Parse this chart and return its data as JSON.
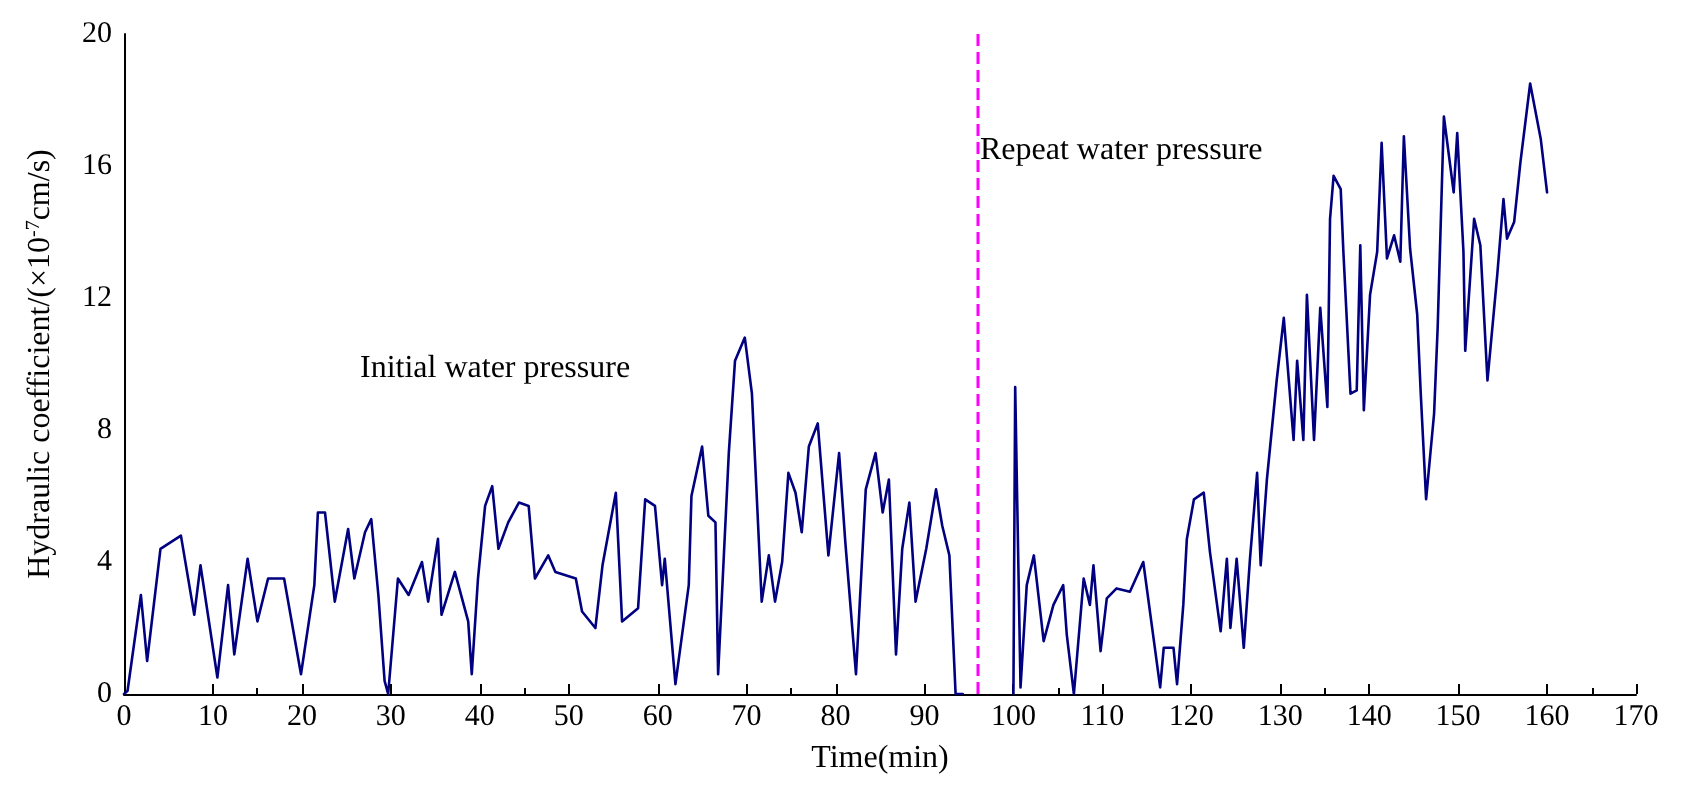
{
  "chart_data": {
    "type": "line",
    "xlabel": "Time(min)",
    "ylabel": "Hydraulic coefficient/(×10$^{-7}$cm/s)",
    "annotations": [
      "Initial water pressure",
      "Repeat water pressure"
    ],
    "xlim": [
      0,
      170
    ],
    "xticks": [
      0,
      10,
      20,
      30,
      40,
      50,
      60,
      70,
      80,
      90,
      100,
      110,
      120,
      130,
      140,
      150,
      160,
      170
    ],
    "ylim": [
      0,
      20
    ],
    "yticks": [
      0,
      4,
      8,
      12,
      16,
      20
    ],
    "grid": false,
    "marker": "none",
    "line_style": "solid",
    "ref_lines": [
      {
        "axis": "x",
        "value": 96,
        "label": null,
        "color": "#ff00ff",
        "line_style": "dashed"
      }
    ],
    "series": [
      {
        "color": "#000080",
        "x": [
          0,
          0.4,
          1.9,
          2.6,
          4.1,
          6.4,
          7.9,
          8.6,
          10.5,
          11.7,
          12.4,
          13.9,
          15.0,
          16.2,
          18.0,
          19.9,
          21.4,
          21.8,
          22.6,
          23.7,
          25.2,
          25.9,
          27.1,
          27.8,
          28.6,
          29.3,
          29.7,
          30.8,
          32.0,
          33.5,
          34.2,
          35.3,
          35.7,
          37.2,
          38.7,
          39.1,
          39.8,
          40.6,
          41.4,
          42.1,
          43.2,
          44.4,
          45.5,
          46.2,
          47.7,
          48.5,
          50.8,
          51.5,
          53.0,
          53.8,
          55.3,
          56.0,
          57.8,
          58.6,
          59.7,
          60.5,
          60.8,
          62.0,
          63.5,
          63.8,
          65.0,
          65.7,
          66.5,
          66.8,
          68.0,
          68.7,
          69.8,
          70.6,
          71.7,
          72.5,
          73.2,
          74.0,
          74.7,
          75.5,
          76.2,
          77.0,
          78.0,
          79.2,
          80.4,
          81.1,
          82.3,
          83.4,
          84.5,
          85.3,
          86.0,
          86.8,
          87.5,
          88.3,
          89.0,
          90.2,
          91.3,
          92.0,
          92.8,
          93.5,
          94.3,
          97,
          100,
          100.2,
          100.8,
          101.5,
          102.3,
          103.4,
          104.5,
          105.6,
          106,
          106.8,
          107.9,
          108.6,
          109,
          109.8,
          110.5,
          111.6,
          113.1,
          114.6,
          115.8,
          116.5,
          116.9,
          118,
          118.4,
          119.1,
          119.5,
          120.3,
          121.4,
          122.1,
          123.3,
          124,
          124.4,
          125.1,
          125.9,
          126.6,
          127.4,
          127.8,
          128.5,
          129.6,
          130.4,
          131.5,
          131.9,
          132.6,
          133,
          133.8,
          134.5,
          135.3,
          135.6,
          136,
          136.8,
          137.1,
          137.9,
          138.6,
          139,
          139.4,
          140.1,
          140.9,
          141.4,
          142,
          142.8,
          143.5,
          143.9,
          144.6,
          145.4,
          145.8,
          146.4,
          147.3,
          147.7,
          148.4,
          149.5,
          149.9,
          150.6,
          150.8,
          151.8,
          152.5,
          153.3,
          154.4,
          155.1,
          155.5,
          156.3,
          157,
          158.1,
          159.3,
          160
        ],
        "values": [
          0,
          0.1,
          3.0,
          1.0,
          4.4,
          4.8,
          2.4,
          3.9,
          0.5,
          3.3,
          1.2,
          4.1,
          2.2,
          3.5,
          3.5,
          0.6,
          3.3,
          5.5,
          5.5,
          2.8,
          5.0,
          3.5,
          4.9,
          5.3,
          3.0,
          0.4,
          0,
          3.5,
          3.0,
          4.0,
          2.8,
          4.7,
          2.4,
          3.7,
          2.2,
          0.6,
          3.5,
          5.7,
          6.3,
          4.4,
          5.2,
          5.8,
          5.7,
          3.5,
          4.2,
          3.7,
          3.5,
          2.5,
          2.0,
          3.9,
          6.1,
          2.2,
          2.6,
          5.9,
          5.7,
          3.3,
          4.1,
          0.3,
          3.3,
          6.0,
          7.5,
          5.4,
          5.2,
          0.6,
          7.3,
          10.1,
          10.8,
          9.1,
          2.8,
          4.2,
          2.8,
          4.0,
          6.7,
          6.1,
          4.9,
          7.5,
          8.2,
          4.2,
          7.3,
          4.6,
          0.6,
          6.2,
          7.3,
          5.5,
          6.5,
          1.2,
          4.4,
          5.8,
          2.8,
          4.4,
          6.2,
          5.1,
          4.2,
          0,
          0,
          null,
          0,
          9.3,
          0.2,
          3.3,
          4.2,
          1.6,
          2.7,
          3.3,
          1.8,
          0,
          3.5,
          2.7,
          3.9,
          1.3,
          2.9,
          3.2,
          3.1,
          4.0,
          1.6,
          0.2,
          1.4,
          1.4,
          0.3,
          2.7,
          4.7,
          5.9,
          6.1,
          4.3,
          1.9,
          4.1,
          2.0,
          4.1,
          1.4,
          4.1,
          6.7,
          3.9,
          6.5,
          9.5,
          11.4,
          7.7,
          10.1,
          7.7,
          12.1,
          7.7,
          11.7,
          8.7,
          14.4,
          15.7,
          15.3,
          13.4,
          9.1,
          9.2,
          13.6,
          8.6,
          12.1,
          13.4,
          16.7,
          13.2,
          13.9,
          13.1,
          16.9,
          13.5,
          11.5,
          9.1,
          5.9,
          8.5,
          11.1,
          17.5,
          15.2,
          17.0,
          13.4,
          10.4,
          14.4,
          13.6,
          9.5,
          12.7,
          15.0,
          13.8,
          14.3,
          16.1,
          18.5,
          16.8,
          15.2
        ]
      }
    ]
  }
}
